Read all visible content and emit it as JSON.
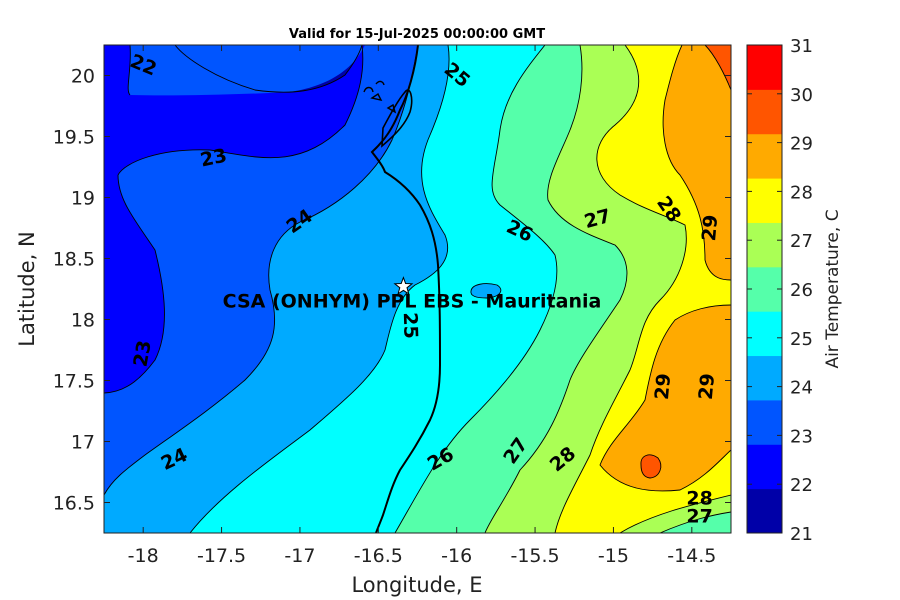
{
  "title": "Valid for 15-Jul-2025 00:00:00 GMT",
  "chart_data": {
    "type": "contour-map",
    "title": "Valid for 15-Jul-2025 00:00:00 GMT",
    "xlabel": "Longitude, E",
    "ylabel": "Latitude, N",
    "xlim": [
      -18.25,
      -14.25
    ],
    "ylim": [
      16.25,
      20.25
    ],
    "x_ticks": [
      "-18",
      "-17.5",
      "-17",
      "-16.5",
      "-16",
      "-15.5",
      "-15",
      "-14.5"
    ],
    "y_ticks": [
      "16.5",
      "17",
      "17.5",
      "18",
      "18.5",
      "19",
      "19.5",
      "20"
    ],
    "colorbar": {
      "label": "Air Temperature, C",
      "range": [
        21,
        31
      ],
      "ticks": [
        "21",
        "22",
        "23",
        "24",
        "25",
        "26",
        "27",
        "28",
        "29",
        "30",
        "31"
      ],
      "colors": [
        "#0000a8",
        "#0000ff",
        "#0055ff",
        "#00aaff",
        "#00ffff",
        "#55ffaa",
        "#aaff55",
        "#ffff00",
        "#ffaa00",
        "#ff5500",
        "#ff0000"
      ]
    },
    "contour_labels": [
      {
        "text": "22",
        "lon": -18.0,
        "lat": 20.08
      },
      {
        "text": "23",
        "lon": -17.55,
        "lat": 19.32
      },
      {
        "text": "24",
        "lon": -17.0,
        "lat": 18.8
      },
      {
        "text": "25",
        "lon": -16.0,
        "lat": 20.0
      },
      {
        "text": "26",
        "lon": -15.6,
        "lat": 18.72
      },
      {
        "text": "27",
        "lon": -15.1,
        "lat": 18.82
      },
      {
        "text": "28",
        "lon": -14.65,
        "lat": 18.9
      },
      {
        "text": "29",
        "lon": -14.38,
        "lat": 18.75
      },
      {
        "text": "23",
        "lon": -18.0,
        "lat": 17.72
      },
      {
        "text": "25",
        "lon": -16.3,
        "lat": 17.95
      },
      {
        "text": "24",
        "lon": -17.8,
        "lat": 16.85
      },
      {
        "text": "26",
        "lon": -16.1,
        "lat": 16.85
      },
      {
        "text": "27",
        "lon": -15.62,
        "lat": 16.92
      },
      {
        "text": "28",
        "lon": -15.32,
        "lat": 16.85
      },
      {
        "text": "29",
        "lon": -14.68,
        "lat": 17.45
      },
      {
        "text": "29",
        "lon": -14.4,
        "lat": 17.45
      },
      {
        "text": "28",
        "lon": -14.45,
        "lat": 16.53
      },
      {
        "text": "27",
        "lon": -14.45,
        "lat": 16.38
      }
    ],
    "site": {
      "name": "CSA (ONHYM) PPL EBS  - Mauritania",
      "lon": -16.34,
      "lat": 18.27
    }
  }
}
